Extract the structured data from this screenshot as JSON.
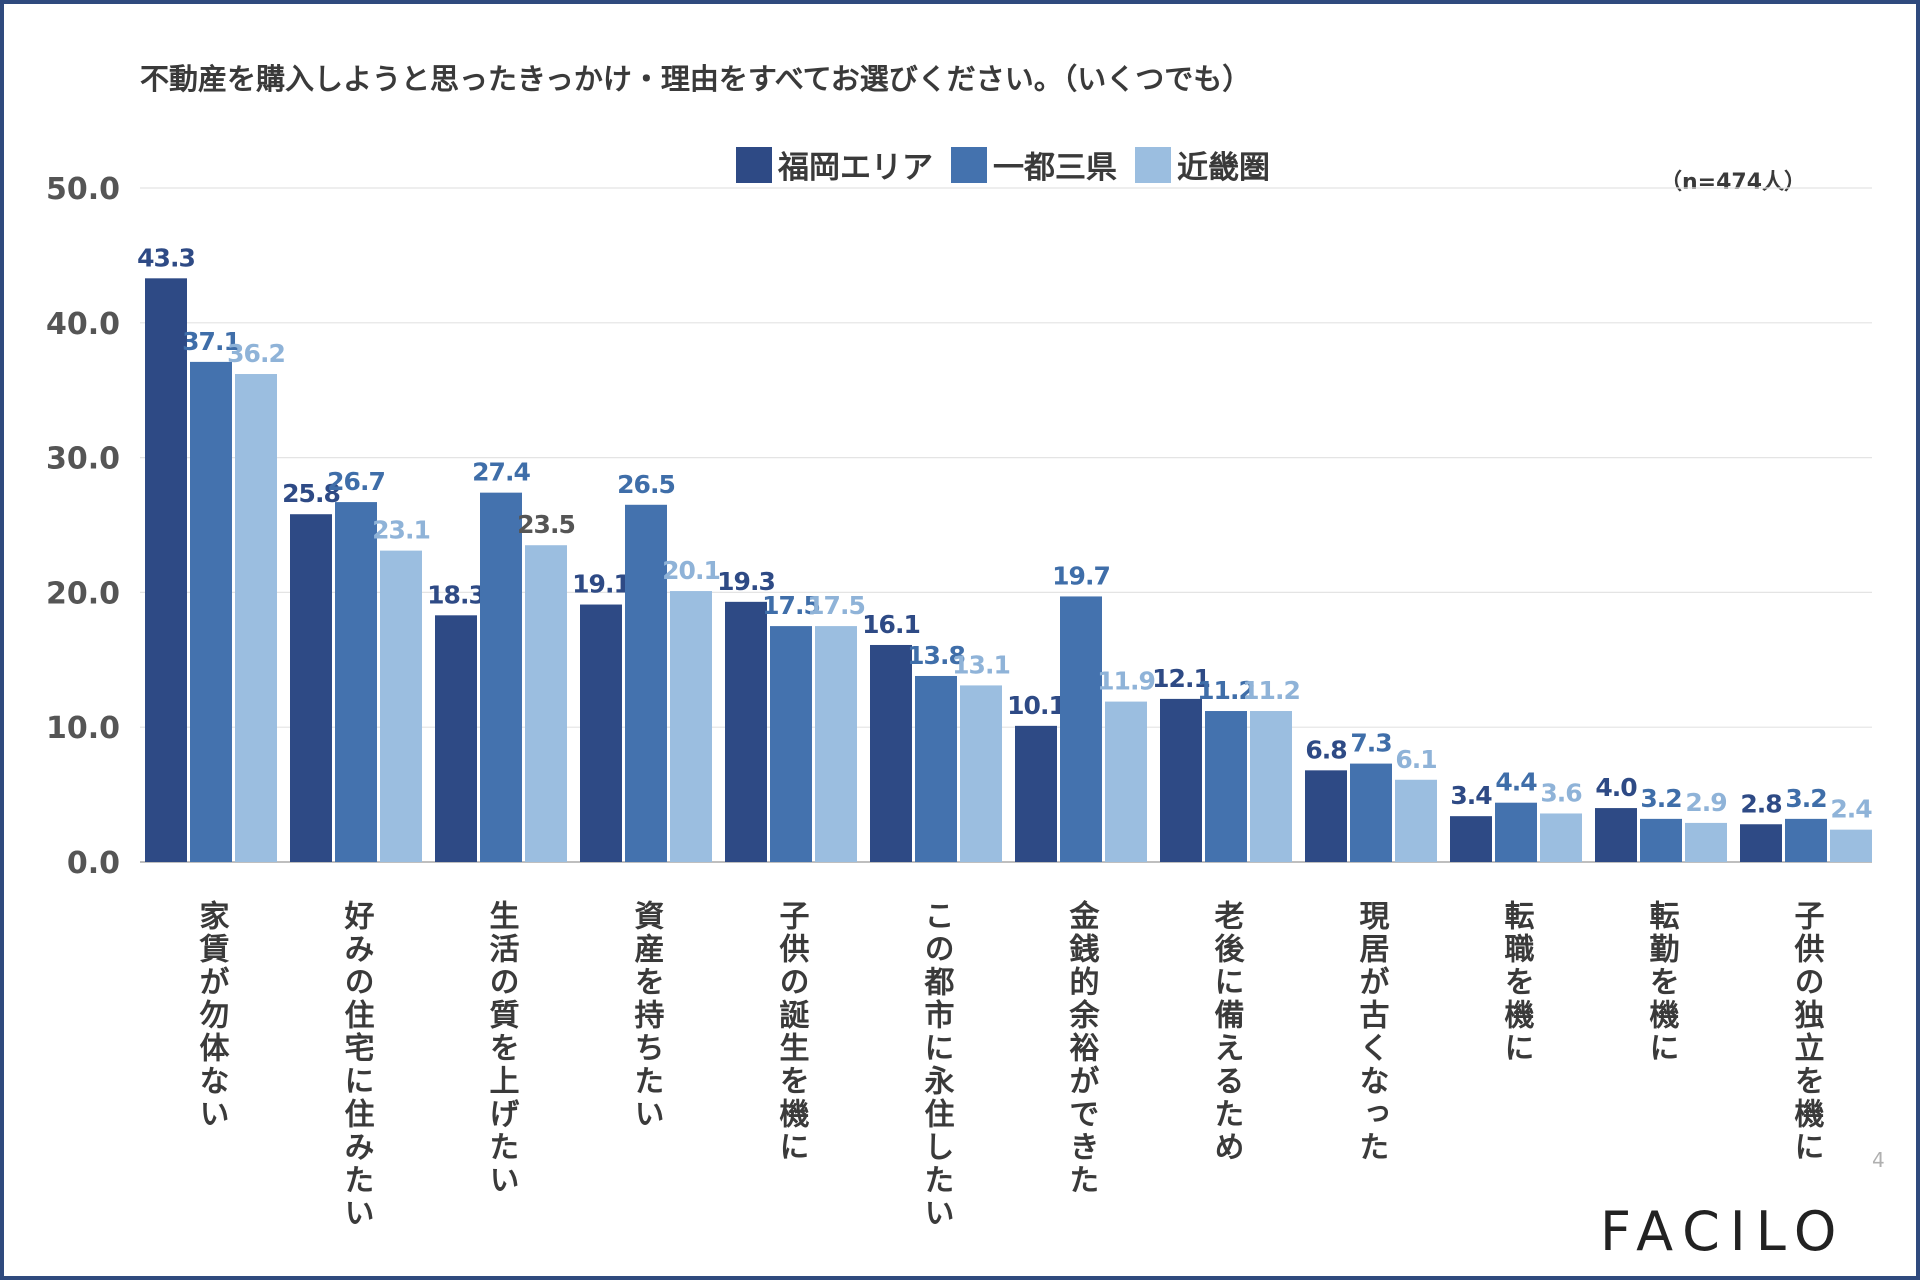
{
  "chart_data": {
    "type": "bar",
    "title": "不動産を購入しようと思ったきっかけ・理由をすべてお選びください。（いくつでも）",
    "note": "（n=474人）",
    "ylim": [
      0,
      50
    ],
    "yticks": [
      "0.0",
      "10.0",
      "20.0",
      "30.0",
      "40.0",
      "50.0"
    ],
    "grid": true,
    "legend_position": "top-center",
    "categories": [
      "家賃が勿体ない",
      "好みの住宅に住みたい",
      "生活の質を上げたい",
      "資産を持ちたい",
      "子供の誕生を機に",
      "この都市に永住したい",
      "金銭的余裕ができた",
      "老後に備えるため",
      "現居が古くなった",
      "転職を機に",
      "転勤を機に",
      "子供の独立を機に"
    ],
    "series": [
      {
        "name": "福岡エリア",
        "color": "#2e4a85",
        "label_color": "#2e4a85",
        "values": [
          43.3,
          25.8,
          18.3,
          19.1,
          19.3,
          16.1,
          10.1,
          12.1,
          6.8,
          3.4,
          4.0,
          2.8
        ]
      },
      {
        "name": "一都三県",
        "color": "#4472ae",
        "label_color": "#3f6ea9",
        "values": [
          37.1,
          26.7,
          27.4,
          26.5,
          17.5,
          13.8,
          19.7,
          11.2,
          7.3,
          4.4,
          3.2,
          3.2
        ]
      },
      {
        "name": "近畿圏",
        "color": "#9bbee0",
        "label_color": "#8fb3d8",
        "values": [
          36.2,
          23.1,
          23.5,
          20.1,
          17.5,
          13.1,
          11.9,
          11.2,
          6.1,
          3.6,
          2.9,
          2.4
        ]
      }
    ],
    "dark_label_exceptions": [
      [
        2,
        2
      ]
    ],
    "dark_label_color": "#555555"
  },
  "footer": {
    "page_number": "4",
    "logo_text": "FACILO"
  }
}
